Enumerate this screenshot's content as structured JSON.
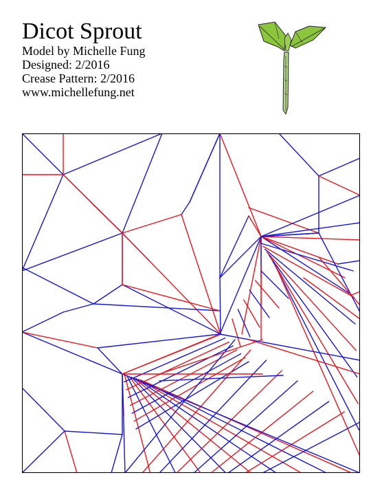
{
  "header": {
    "title": "Dicot Sprout",
    "model_by": "Model by Michelle Fung",
    "designed": "Designed: 2/2016",
    "crease_pattern": "Crease Pattern: 2/2016",
    "website": "www.michellefung.net"
  },
  "illustration": {
    "icon": "sprout-icon",
    "leaf_color": "#8cc63f",
    "stem_color": "#b5d98a"
  },
  "crease_pattern": {
    "mountain_color": "#1515dd",
    "valley_color": "#e8171d",
    "border_color": "#000000"
  }
}
